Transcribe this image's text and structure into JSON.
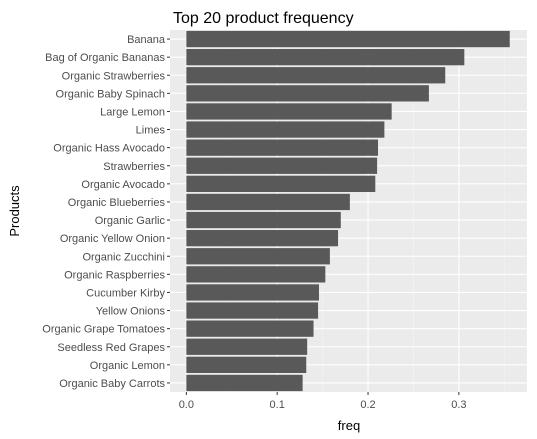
{
  "chart_data": {
    "type": "bar",
    "orientation": "horizontal",
    "title": "Top 20 product frequency",
    "xlabel": "freq",
    "ylabel": "Products",
    "xlim": [
      -0.018,
      0.375
    ],
    "xticks": [
      0.0,
      0.1,
      0.2,
      0.3
    ],
    "xtick_labels": [
      "0.0",
      "0.1",
      "0.2",
      "0.3"
    ],
    "grid": true,
    "bar_color": "#595959",
    "panel_color": "#ebebeb",
    "categories": [
      "Banana",
      "Bag of Organic Bananas",
      "Organic Strawberries",
      "Organic Baby Spinach",
      "Large Lemon",
      "Limes",
      "Organic Hass Avocado",
      "Strawberries",
      "Organic Avocado",
      "Organic Blueberries",
      "Organic Garlic",
      "Organic Yellow Onion",
      "Organic Zucchini",
      "Organic Raspberries",
      "Cucumber Kirby",
      "Yellow Onions",
      "Organic Grape Tomatoes",
      "Seedless Red Grapes",
      "Organic Lemon",
      "Organic Baby Carrots"
    ],
    "values": [
      0.356,
      0.306,
      0.285,
      0.267,
      0.226,
      0.218,
      0.211,
      0.21,
      0.208,
      0.18,
      0.17,
      0.167,
      0.158,
      0.153,
      0.146,
      0.145,
      0.14,
      0.133,
      0.132,
      0.128
    ]
  }
}
